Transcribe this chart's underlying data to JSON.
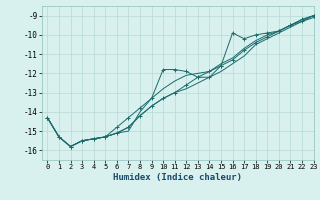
{
  "xlabel": "Humidex (Indice chaleur)",
  "xlim": [
    -0.5,
    23
  ],
  "ylim": [
    -16.5,
    -8.5
  ],
  "yticks": [
    -16,
    -15,
    -14,
    -13,
    -12,
    -11,
    -10,
    -9
  ],
  "xticks": [
    0,
    1,
    2,
    3,
    4,
    5,
    6,
    7,
    8,
    9,
    10,
    11,
    12,
    13,
    14,
    15,
    16,
    17,
    18,
    19,
    20,
    21,
    22,
    23
  ],
  "bg_color": "#d8f0ee",
  "grid_color": "#b8d8d4",
  "line_color": "#1a6b6b",
  "series": [
    {
      "x": [
        0,
        1,
        2,
        3,
        4,
        5,
        6,
        7,
        8,
        9,
        10,
        11,
        12,
        13,
        14,
        15,
        16,
        17,
        18,
        19,
        20,
        21,
        22,
        23
      ],
      "y": [
        -14.3,
        -15.3,
        -15.8,
        -15.5,
        -15.4,
        -15.3,
        -15.1,
        -14.8,
        -14.2,
        -13.7,
        -13.3,
        -13.0,
        -12.6,
        -12.2,
        -11.9,
        -11.6,
        -11.3,
        -10.8,
        -10.4,
        -10.1,
        -9.8,
        -9.5,
        -9.3,
        -9.0
      ],
      "marker": true
    },
    {
      "x": [
        0,
        1,
        2,
        3,
        4,
        5,
        6,
        7,
        8,
        9,
        10,
        11,
        12,
        13,
        14,
        15,
        16,
        17,
        18,
        19,
        20,
        21,
        22,
        23
      ],
      "y": [
        -14.3,
        -15.3,
        -15.8,
        -15.5,
        -15.4,
        -15.3,
        -15.1,
        -14.8,
        -14.2,
        -13.7,
        -13.3,
        -13.0,
        -12.8,
        -12.5,
        -12.2,
        -11.9,
        -11.5,
        -11.1,
        -10.5,
        -10.2,
        -9.9,
        -9.6,
        -9.3,
        -9.1
      ],
      "marker": false
    },
    {
      "x": [
        0,
        1,
        2,
        3,
        4,
        5,
        6,
        7,
        8,
        9,
        10,
        11,
        12,
        13,
        14,
        15,
        16,
        17,
        18,
        19,
        20,
        21,
        22,
        23
      ],
      "y": [
        -14.3,
        -15.3,
        -15.8,
        -15.5,
        -15.4,
        -15.3,
        -15.1,
        -15.0,
        -14.0,
        -13.3,
        -12.8,
        -12.4,
        -12.1,
        -12.0,
        -11.9,
        -11.5,
        -11.2,
        -10.7,
        -10.3,
        -10.0,
        -9.8,
        -9.5,
        -9.2,
        -9.0
      ],
      "marker": false
    },
    {
      "x": [
        0,
        1,
        2,
        3,
        4,
        5,
        6,
        7,
        8,
        9,
        10,
        11,
        12,
        13,
        14,
        15,
        16,
        17,
        18,
        19,
        20,
        21,
        22,
        23
      ],
      "y": [
        -14.3,
        -15.3,
        -15.8,
        -15.5,
        -15.4,
        -15.3,
        -14.8,
        -14.3,
        -13.8,
        -13.3,
        -11.8,
        -11.8,
        -11.9,
        -12.2,
        -12.2,
        -11.6,
        -9.9,
        -10.2,
        -10.0,
        -9.9,
        -9.8,
        -9.5,
        -9.2,
        -9.0
      ],
      "marker": true
    }
  ]
}
